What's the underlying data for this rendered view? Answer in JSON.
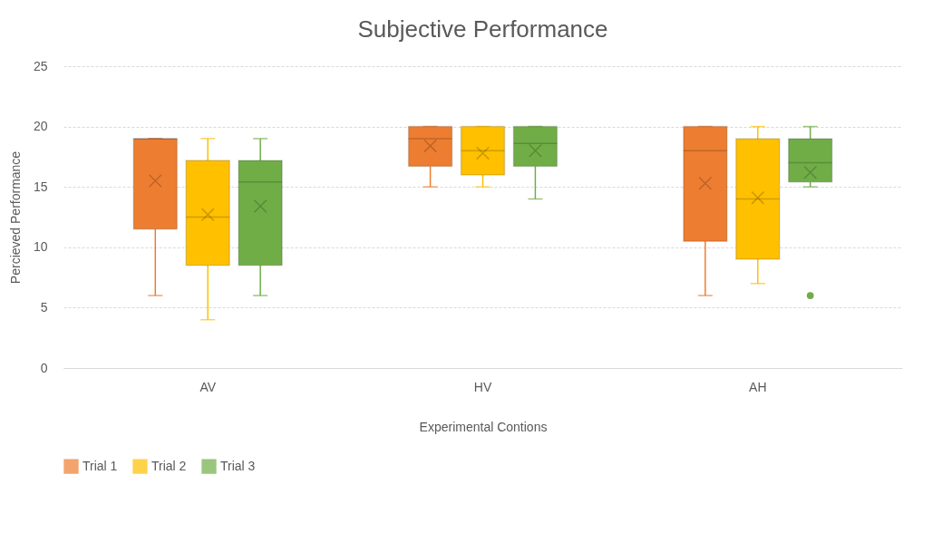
{
  "chart_data": {
    "type": "box",
    "title": "Subjective Performance",
    "xlabel": "Experimental Contions",
    "ylabel": "Percieved Performance",
    "categories": [
      "AV",
      "HV",
      "AH"
    ],
    "ylim": [
      0,
      25
    ],
    "yticks": [
      0,
      5,
      10,
      15,
      20,
      25
    ],
    "grid": "y",
    "legend": "bottom",
    "series": [
      {
        "name": "Trial 1",
        "color": "#ed7d31",
        "boxes": [
          {
            "low": 6,
            "q1": 11.5,
            "median": 19,
            "q3": 19,
            "high": 19,
            "mean": 15.5
          },
          {
            "low": 15,
            "q1": 16.7,
            "median": 19,
            "q3": 20,
            "high": 20,
            "mean": 18.4
          },
          {
            "low": 6,
            "q1": 10.5,
            "median": 18,
            "q3": 20,
            "high": 20,
            "mean": 15.3
          }
        ]
      },
      {
        "name": "Trial 2",
        "color": "#ffc000",
        "boxes": [
          {
            "low": 4,
            "q1": 8.5,
            "median": 12.5,
            "q3": 17.2,
            "high": 19,
            "mean": 12.7
          },
          {
            "low": 15,
            "q1": 16,
            "median": 18,
            "q3": 20,
            "high": 20,
            "mean": 17.8
          },
          {
            "low": 7,
            "q1": 9,
            "median": 14,
            "q3": 19,
            "high": 20,
            "mean": 14.1
          }
        ]
      },
      {
        "name": "Trial 3",
        "color": "#70ad47",
        "boxes": [
          {
            "low": 6,
            "q1": 8.5,
            "median": 15.4,
            "q3": 17.2,
            "high": 19,
            "mean": 13.4
          },
          {
            "low": 14,
            "q1": 16.7,
            "median": 18.6,
            "q3": 20,
            "high": 20,
            "mean": 18
          },
          {
            "low": 15,
            "q1": 15.4,
            "median": 17,
            "q3": 19,
            "high": 20,
            "mean": 16.2,
            "outliers": [
              6
            ]
          }
        ]
      }
    ]
  }
}
